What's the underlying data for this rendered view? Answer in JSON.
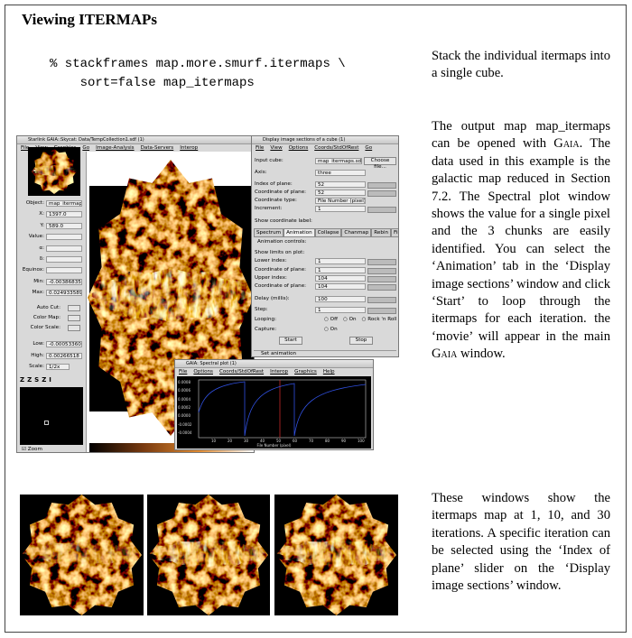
{
  "header": {
    "title": "Viewing ITERMAPs"
  },
  "code": [
    "% stackframes map.more.smurf.itermaps \\",
    "    sort=false map_itermaps"
  ],
  "paragraphs": [
    [
      {
        "text": "Stack the individual itermaps into a single cube."
      }
    ],
    [
      {
        "text": "The output map map_itermaps can be opened with "
      },
      {
        "text": "Gaia",
        "smallcaps": true
      },
      {
        "text": ". The data used in this example is the galactic map reduced in Section 7.2. The Spectral plot window shows the value for a single pixel and the 3 chunks are easily identified. You can select the ‘Animation’ tab in the ‘Display image sections’ window and click ‘Start’ to loop through the itermaps for each iteration. the ‘movie’ will appear in the main "
      },
      {
        "text": "Gaia",
        "smallcaps": true
      },
      {
        "text": " window."
      }
    ],
    [
      {
        "text": "These windows show the itermaps map at 1, 10, and 30 iterations. A specific iteration can be selected using the ‘Index of plane’ slider on the ‘Display image sections’ window."
      }
    ]
  ],
  "main_window": {
    "title": "Starlink GAIA::Skycat: Data/TempCollection1.sdf (1)",
    "menu": [
      "File",
      "View",
      "Graphics",
      "Go",
      "Image-Analysis",
      "Data-Servers",
      "Interop"
    ],
    "fields": [
      {
        "label": "Object:",
        "value": "map_itermaps"
      },
      {
        "label": "X:",
        "value": "1397.0"
      },
      {
        "label": "Y:",
        "value": "589.0"
      },
      {
        "label": "Value:"
      },
      {
        "label": "α:"
      },
      {
        "label": "δ:"
      },
      {
        "label": "Equinox:"
      },
      {
        "label": "Min:",
        "value": "-0.003868357"
      },
      {
        "label": "Max:",
        "value": "0.024933589"
      }
    ],
    "controls": [
      "Auto Cut:",
      "Color Map:",
      "Color Scale:"
    ],
    "cuts": [
      {
        "label": "Low:",
        "value": "-0.000533602"
      },
      {
        "label": "High:",
        "value": "0.00266518"
      },
      {
        "label": "Scale:",
        "value": "1/2x"
      }
    ],
    "zoom": "Zoom"
  },
  "dialog": {
    "title": "Display image sections of a cube (1)",
    "menu": [
      "File",
      "View",
      "Options",
      "Coords/StdOfRest",
      "Go"
    ],
    "rows_top": [
      {
        "label": "Input cube:",
        "value": "map_itermaps.sdf"
      },
      {
        "label": "Axis:",
        "value": "three"
      },
      {
        "label": "Index of plane:",
        "value": "52"
      },
      {
        "label": "Coordinate of plane:",
        "value": "52"
      },
      {
        "label": "Coordinate type:",
        "value": "File Number (pixel)"
      },
      {
        "label": "Increment:",
        "value": "1"
      }
    ],
    "choose": "Choose file...",
    "show_label": "Show coordinate label:",
    "tabs": [
      "Spectrum",
      "Animation",
      "Collapse",
      "Chanmap",
      "Rebin",
      "Filter"
    ],
    "anim_title": "Animation controls:",
    "show_limits": "Show limits on plot:",
    "rows_bottom": [
      {
        "label": "Lower index:",
        "value": "1"
      },
      {
        "label": "Coordinate of plane:",
        "value": "1"
      },
      {
        "label": "Upper index:",
        "value": "104"
      },
      {
        "label": "Coordinate of plane:",
        "value": "104"
      },
      {
        "label": "Delay (millis):",
        "value": "100"
      },
      {
        "label": "Step:",
        "value": "1"
      }
    ],
    "looping": "Looping:",
    "loop_options": [
      "Off",
      "On",
      "Rock 'n Roll"
    ],
    "capture": "Capture:",
    "capture_option": "On",
    "start": "Start",
    "stop": "Stop",
    "footer": "Set animation"
  },
  "plot_window": {
    "title": "GAIA: Spectral plot (1)",
    "menu": [
      "File",
      "Options",
      "Coords/StdOfRest",
      "Interop",
      "Graphics",
      "Help"
    ],
    "yticks": [
      "0.0008",
      "0.0006",
      "0.0004",
      "0.0002",
      "0.0000",
      "-0.0002",
      "-0.0004"
    ],
    "xticks": [
      "10",
      "20",
      "30",
      "40",
      "50",
      "60",
      "70",
      "80",
      "90",
      "100"
    ],
    "xlabel": "File Number (pixel)"
  }
}
